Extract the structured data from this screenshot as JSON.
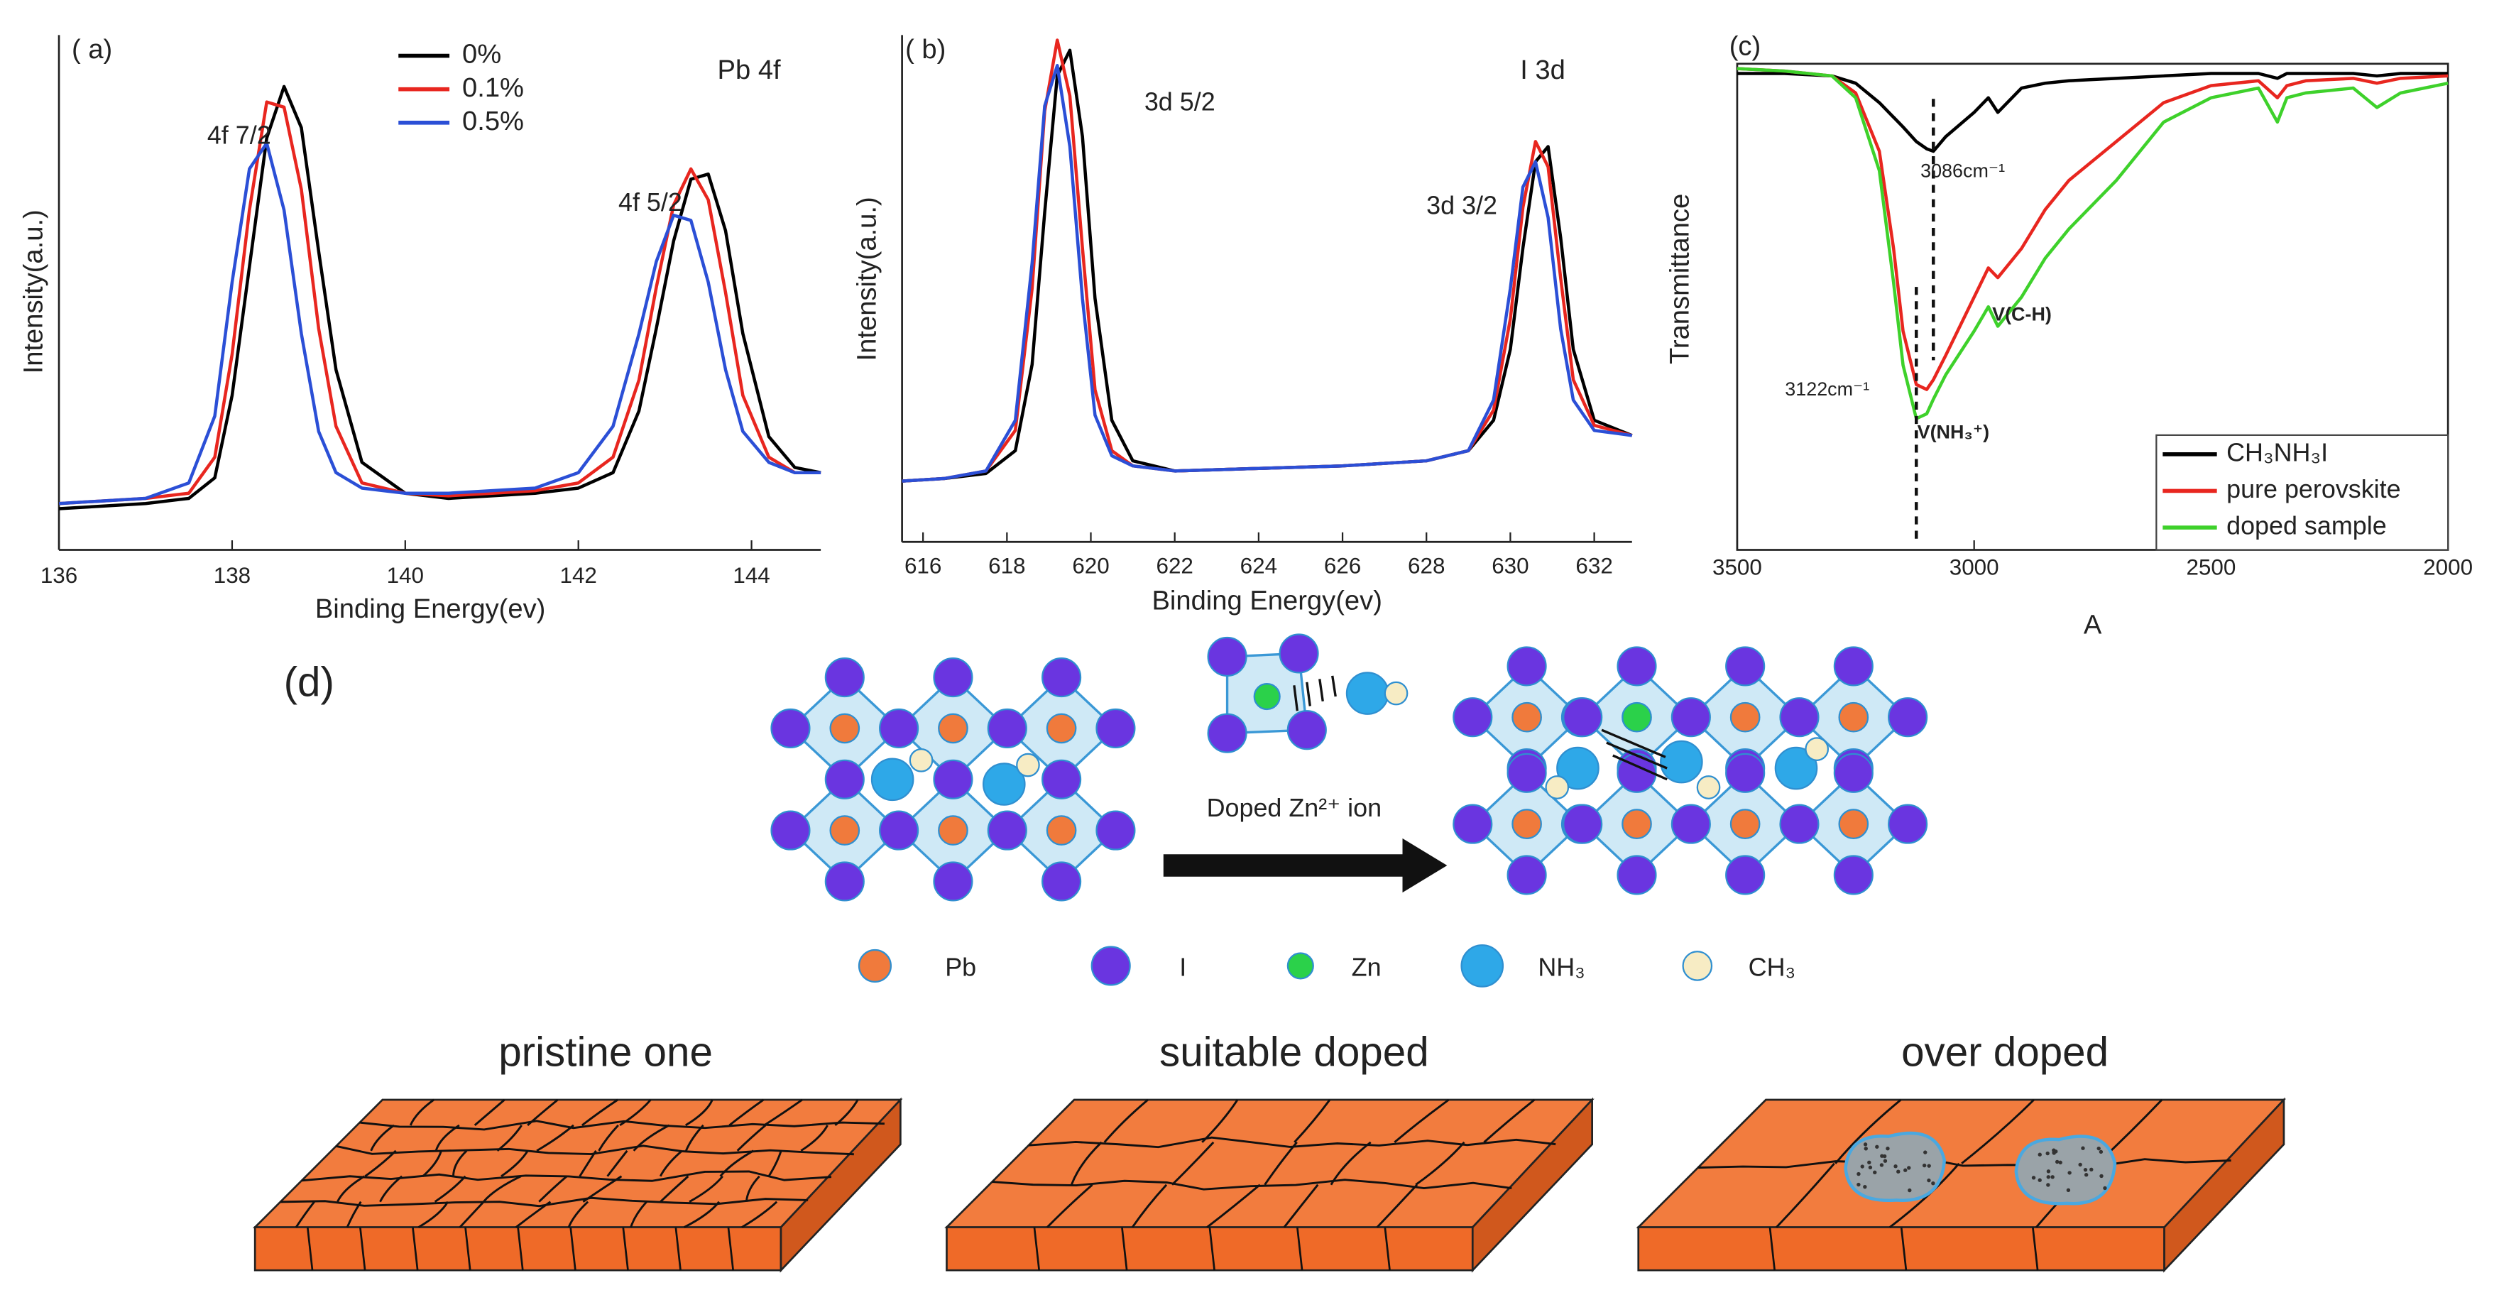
{
  "chart_data": [
    {
      "type": "line",
      "panel_label": "( a)",
      "title": "Pb 4f",
      "xlabel": "Binding Energy(ev)",
      "ylabel": "Intensity(a.u.)",
      "x": [
        136,
        136.5,
        137,
        137.5,
        137.8,
        138,
        138.2,
        138.4,
        138.6,
        138.8,
        139,
        139.2,
        139.5,
        140,
        140.5,
        141,
        141.5,
        142,
        142.4,
        142.7,
        142.9,
        143.1,
        143.3,
        143.5,
        143.7,
        143.9,
        144.2,
        144.5,
        144.8
      ],
      "xlim": [
        136,
        144.8
      ],
      "xticks": [
        136,
        138,
        140,
        142,
        144
      ],
      "ylim": [
        0,
        100
      ],
      "legend": "upper center",
      "series": [
        {
          "name": "0%",
          "color": "#000000",
          "values": [
            8,
            8.5,
            9,
            10,
            14,
            30,
            55,
            80,
            90,
            82,
            58,
            35,
            17,
            11,
            10,
            10.5,
            11,
            12,
            15,
            27,
            43,
            60,
            72,
            73,
            62,
            42,
            22,
            16,
            15
          ]
        },
        {
          "name": "0.1%",
          "color": "#e8261f",
          "values": [
            9,
            9.5,
            10,
            11,
            18,
            38,
            66,
            87,
            86,
            70,
            43,
            24,
            13,
            11,
            10.5,
            11,
            11.5,
            13,
            18,
            33,
            51,
            67,
            74,
            68,
            50,
            30,
            18,
            15,
            15
          ]
        },
        {
          "name": "0.5%",
          "color": "#2b4fd6",
          "values": [
            9,
            9.5,
            10,
            13,
            26,
            52,
            74,
            79,
            66,
            42,
            23,
            15,
            12,
            11,
            11,
            11.5,
            12,
            15,
            24,
            42,
            56,
            65,
            64,
            52,
            35,
            23,
            17,
            15,
            15
          ]
        }
      ],
      "annotations": [
        {
          "text": "4f 7/2"
        },
        {
          "text": "4f 5/2"
        }
      ]
    },
    {
      "type": "line",
      "panel_label": "( b)",
      "title": "I 3d",
      "xlabel": "Binding Energy(ev)",
      "ylabel": "Intensity(a.u.)",
      "x": [
        615.5,
        616.5,
        617.5,
        618.2,
        618.6,
        618.9,
        619.2,
        619.5,
        619.8,
        620.1,
        620.5,
        621,
        622,
        624,
        626,
        628,
        629,
        629.6,
        630,
        630.3,
        630.6,
        630.9,
        631.2,
        631.5,
        632,
        632.9
      ],
      "xlim": [
        615.5,
        632.9
      ],
      "xticks": [
        616,
        618,
        620,
        622,
        624,
        626,
        628,
        630,
        632
      ],
      "ylim": [
        0,
        100
      ],
      "series": [
        {
          "name": "0%",
          "color": "#000000",
          "values": [
            12,
            12.5,
            13.5,
            18,
            35,
            65,
            92,
            97,
            80,
            48,
            24,
            16,
            14,
            14.5,
            15,
            16,
            18,
            24,
            38,
            58,
            75,
            78,
            60,
            38,
            24,
            21
          ]
        },
        {
          "name": "0.1%",
          "color": "#e8261f",
          "values": [
            12,
            12.5,
            14,
            22,
            50,
            85,
            99,
            88,
            58,
            30,
            18,
            15,
            14,
            14.5,
            15,
            16,
            18,
            26,
            44,
            66,
            79,
            74,
            52,
            32,
            23,
            21
          ]
        },
        {
          "name": "0.5%",
          "color": "#2b4fd6",
          "values": [
            12,
            12.5,
            14,
            24,
            55,
            86,
            94,
            78,
            48,
            25,
            17,
            15,
            14,
            14.5,
            15,
            16,
            18,
            28,
            50,
            70,
            75,
            64,
            42,
            28,
            22,
            21
          ]
        }
      ],
      "annotations": [
        {
          "text": "3d 5/2"
        },
        {
          "text": "3d 3/2"
        }
      ]
    },
    {
      "type": "line",
      "panel_label": "(c)",
      "xlabel": "A",
      "ylabel": "Transmittance",
      "x": [
        3500,
        3400,
        3300,
        3250,
        3200,
        3170,
        3150,
        3122,
        3100,
        3086,
        3060,
        3000,
        2970,
        2950,
        2900,
        2850,
        2800,
        2700,
        2600,
        2500,
        2400,
        2360,
        2340,
        2300,
        2200,
        2150,
        2100,
        2000
      ],
      "xlim": [
        3500,
        2000
      ],
      "xticks": [
        3500,
        3000,
        2500,
        2000
      ],
      "ylim": [
        0,
        100
      ],
      "legend": "lower right",
      "series": [
        {
          "name": "CH₃NH₃I",
          "color": "#000000",
          "values": [
            98,
            98,
            97.5,
            96,
            92,
            89,
            87,
            84,
            82.5,
            82,
            85,
            90,
            93,
            90,
            95,
            96,
            96.5,
            97,
            97.5,
            98,
            98,
            97,
            98,
            98,
            98,
            97.5,
            98,
            98
          ]
        },
        {
          "name": "pure perovskite",
          "color": "#e8261f",
          "values": [
            99,
            98.5,
            97.5,
            94,
            82,
            62,
            45,
            34,
            33,
            35,
            40,
            52,
            58,
            56,
            62,
            70,
            76,
            84,
            92,
            95.5,
            96.5,
            93,
            95.5,
            96.5,
            97,
            96,
            97,
            97.5
          ]
        },
        {
          "name": "doped sample",
          "color": "#3ed12b",
          "values": [
            99,
            98.5,
            97.5,
            93,
            78,
            55,
            38,
            27,
            28,
            31,
            36,
            45,
            50,
            46,
            52,
            60,
            66,
            76,
            88,
            93,
            95,
            88,
            93,
            94,
            95,
            91,
            94,
            96
          ]
        }
      ],
      "annotations": [
        {
          "x": 3086,
          "text": "3086cm⁻¹"
        },
        {
          "x": 3122,
          "text": "3122cm⁻¹"
        },
        {
          "text": "V(C-H)"
        },
        {
          "text": "V(NH₃⁺)"
        }
      ]
    }
  ],
  "diagram": {
    "panel_label": "(d)",
    "arrow_label": "Doped Zn²⁺ ion",
    "legend": [
      "Pb",
      "I",
      "Zn",
      "NH₃",
      "CH₃"
    ],
    "films": [
      "pristine one",
      "suitable doped",
      "over doped"
    ]
  }
}
